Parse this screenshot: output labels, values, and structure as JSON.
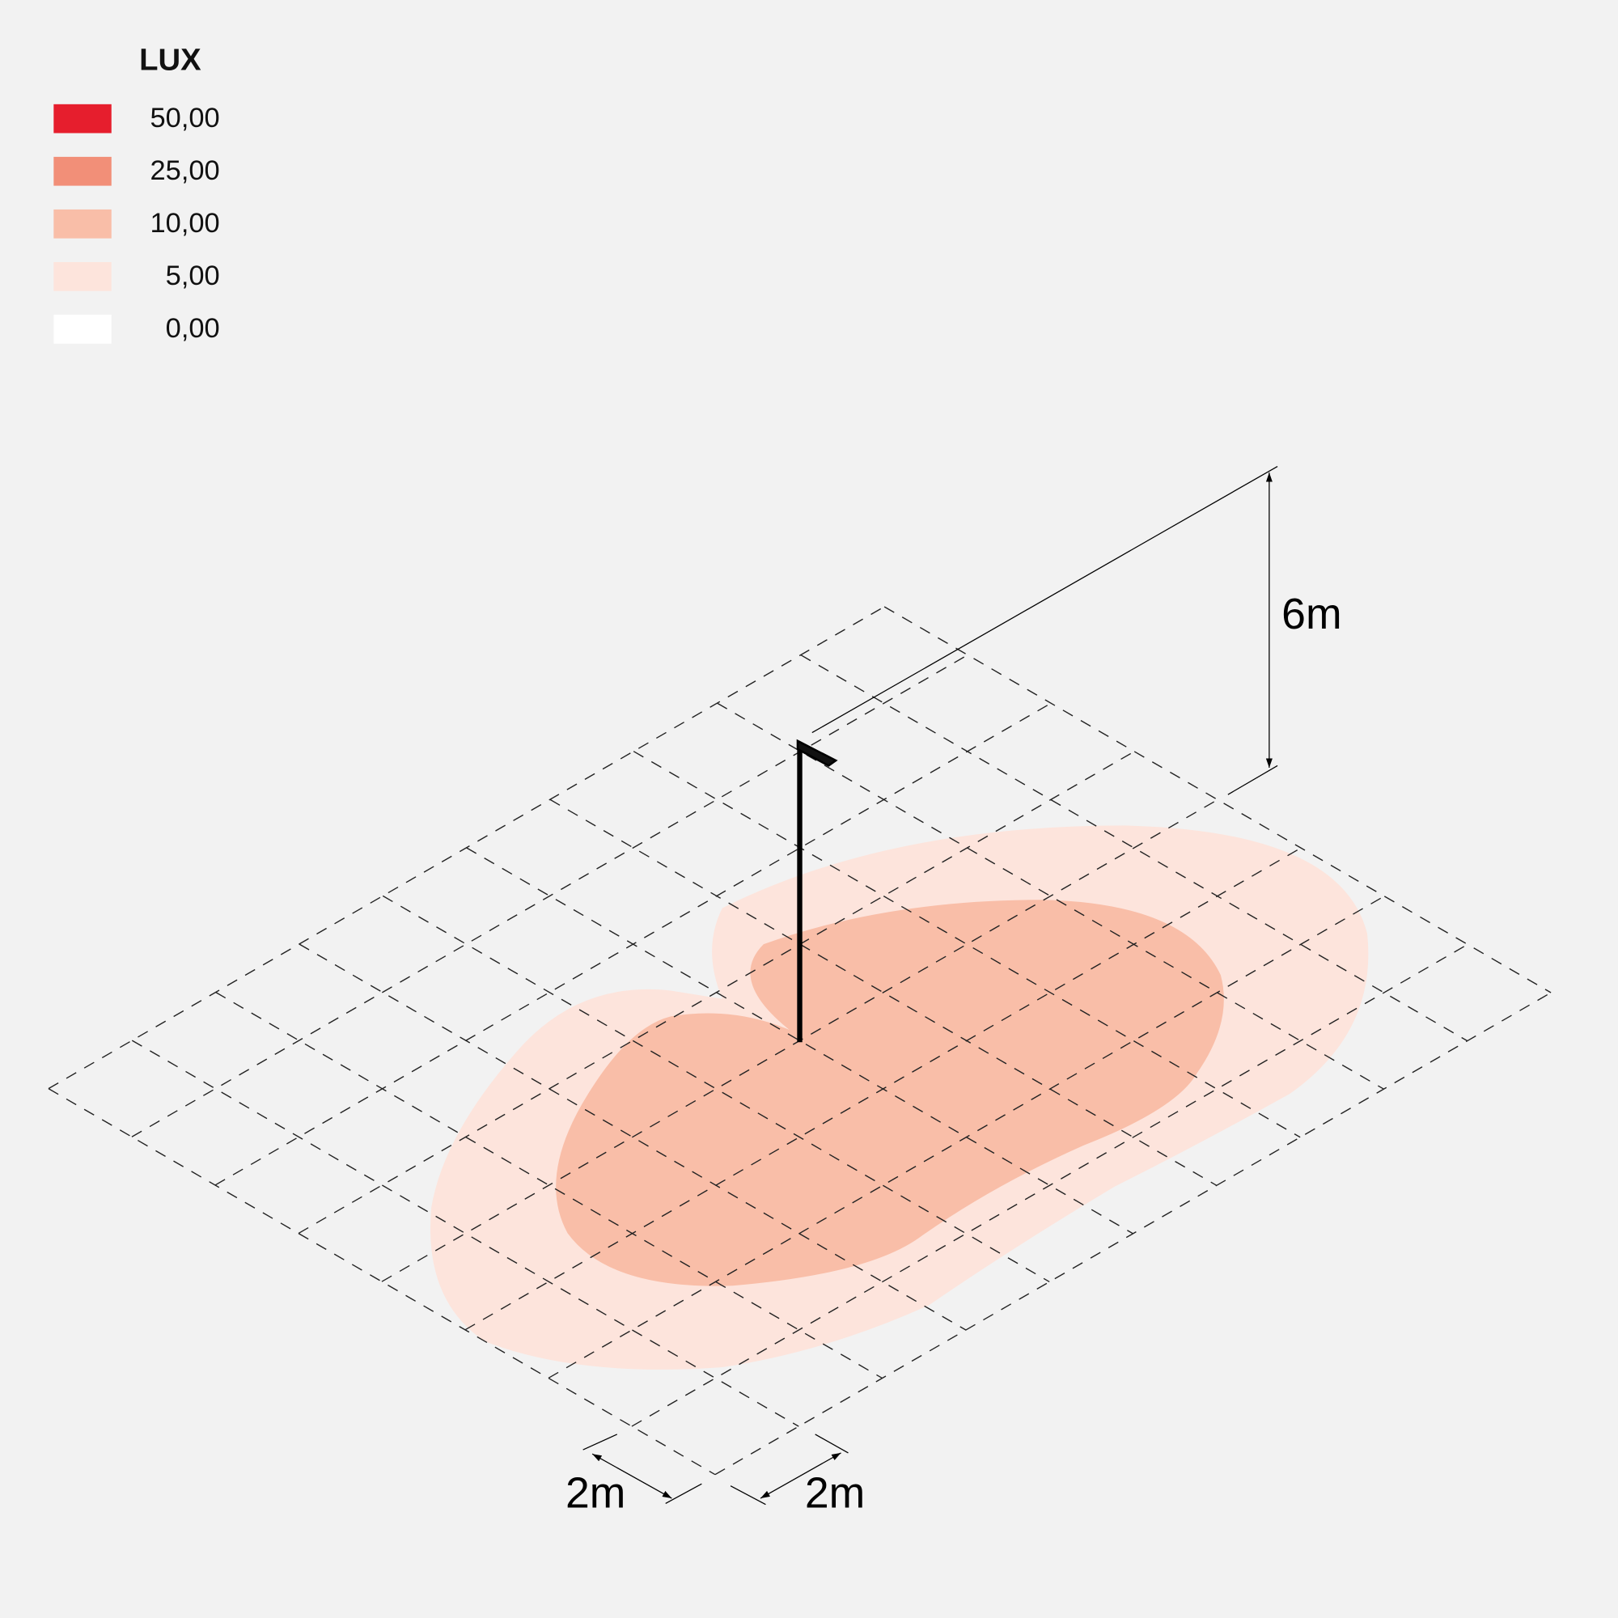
{
  "legend": {
    "title": "LUX",
    "items": [
      {
        "label": "50,00",
        "color": "#e61e2d"
      },
      {
        "label": "25,00",
        "color": "#f28f78"
      },
      {
        "label": "10,00",
        "color": "#f9bea8"
      },
      {
        "label": "5,00",
        "color": "#fde4dc"
      },
      {
        "label": "0,00",
        "color": "#ffffff"
      }
    ]
  },
  "dimensions": {
    "height": "6m",
    "grid_a": "2m",
    "grid_b": "2m"
  }
}
